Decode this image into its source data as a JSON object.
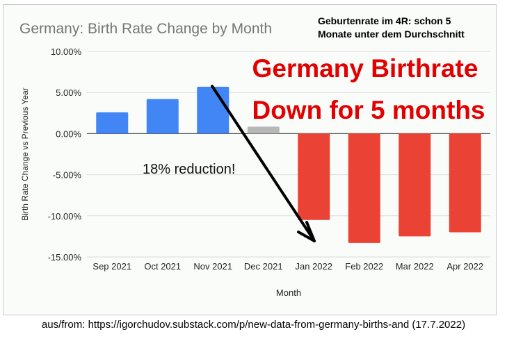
{
  "chart_data": {
    "type": "bar",
    "title": "Germany: Birth Rate Change by Month",
    "xlabel": "Month",
    "ylabel": "Birth Rate Change vs Previous Year",
    "categories": [
      "Sep 2021",
      "Oct 2021",
      "Nov 2021",
      "Dec 2021",
      "Jan 2022",
      "Feb 2022",
      "Mar 2022",
      "Apr 2022"
    ],
    "values": [
      2.6,
      4.2,
      5.7,
      0.85,
      -10.5,
      -13.3,
      -12.5,
      -12.0
    ],
    "bar_colors": [
      "#4285f4",
      "#4285f4",
      "#4285f4",
      "#b7b7b7",
      "#ea4335",
      "#ea4335",
      "#ea4335",
      "#ea4335"
    ],
    "ylim": [
      -15,
      10
    ],
    "yticks": [
      "10.00%",
      "5.00%",
      "0.00%",
      "-5.00%",
      "-10.00%",
      "-15.00%"
    ],
    "ytick_values": [
      10,
      5,
      0,
      -5,
      -10,
      -15
    ],
    "grid": true,
    "annotations": {
      "note_de_line1": "Geburtenrate im 4R: schon 5",
      "note_de_line2": "Monate unter dem Durchschnitt",
      "headline_line1": "Germany Birthrate",
      "headline_line2": "Down for 5 months",
      "arrow_label": "18% reduction!",
      "headline_color": "#e30000"
    }
  },
  "caption": "aus/from: https://igorchudov.substack.com/p/new-data-from-germany-births-and (17.7.2022)"
}
